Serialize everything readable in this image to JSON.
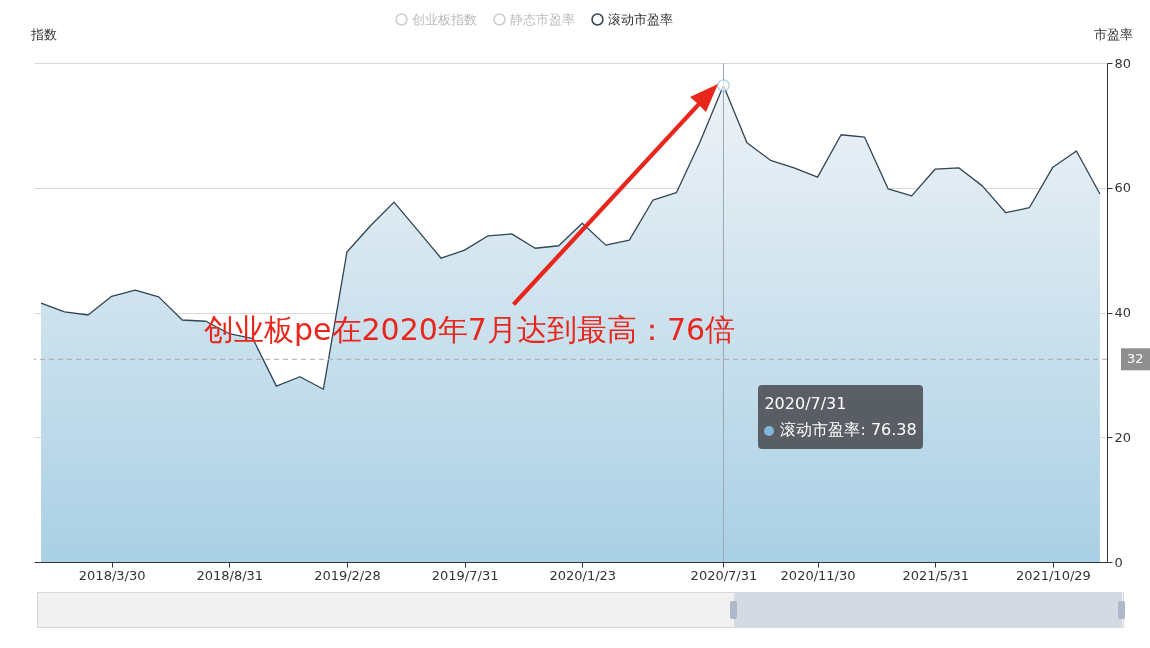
{
  "chart_data": {
    "type": "area",
    "ylabel": "指数",
    "y2label": "市盈率",
    "categories": [
      null,
      null,
      null,
      "2018/3/30",
      null,
      null,
      null,
      null,
      "2018/8/31",
      null,
      null,
      null,
      null,
      "2019/2/28",
      null,
      null,
      null,
      null,
      "2019/7/31",
      null,
      null,
      null,
      null,
      "2020/1/23",
      null,
      null,
      null,
      null,
      null,
      "2020/7/31",
      null,
      null,
      null,
      "2020/11/30",
      null,
      null,
      null,
      null,
      "2021/5/31",
      null,
      null,
      null,
      null,
      "2021/10/29",
      null,
      null
    ],
    "series": [
      {
        "name": "创业板指数",
        "type": "line",
        "color": "#cccccc",
        "values": [
          null,
          null,
          null,
          null,
          null,
          null,
          null,
          null,
          null,
          null,
          null,
          null,
          null,
          null,
          null,
          null,
          null,
          null,
          null,
          null,
          null,
          null,
          null,
          null,
          null,
          null,
          null,
          null,
          null,
          null,
          null,
          null,
          null,
          null,
          null,
          null,
          null,
          null,
          null,
          null,
          null,
          null,
          null,
          null,
          null,
          null
        ]
      },
      {
        "name": "静态市盈率",
        "type": "line",
        "color": "#cccccc",
        "values": [
          null,
          null,
          null,
          null,
          null,
          null,
          null,
          null,
          null,
          null,
          null,
          null,
          null,
          null,
          null,
          null,
          null,
          null,
          null,
          null,
          null,
          null,
          null,
          null,
          null,
          null,
          null,
          null,
          null,
          null,
          null,
          null,
          null,
          null,
          null,
          null,
          null,
          null,
          null,
          null,
          null,
          null,
          null,
          null,
          null,
          null
        ]
      },
      {
        "name": "滚动市盈率",
        "type": "area",
        "axis": "y2",
        "color": "#2f4554",
        "values": [
          41.5,
          40.1,
          39.6,
          42.6,
          43.6,
          42.5,
          38.8,
          38.6,
          36.6,
          35.8,
          28.2,
          29.7,
          27.7,
          49.7,
          53.9,
          57.7,
          53.2,
          48.7,
          50.0,
          52.3,
          52.6,
          50.3,
          50.7,
          54.3,
          50.8,
          51.6,
          58.0,
          59.2,
          67.3,
          76.38,
          67.2,
          64.4,
          63.2,
          61.7,
          68.5,
          68.1,
          59.8,
          58.7,
          63.0,
          63.2,
          60.3,
          56.0,
          56.8,
          63.3,
          65.9,
          59.0
        ]
      }
    ],
    "y2lim": [
      0,
      80
    ],
    "y2ticks": [
      0,
      20,
      40,
      60,
      80
    ],
    "grid": "y2",
    "legend": "top",
    "marker": "none",
    "ref_lines": [
      {
        "axis": "y2",
        "value": 32.5,
        "label": "32",
        "color": "#aaaaaa",
        "line_style": "dashed"
      }
    ],
    "annotations": [
      "滚动市盈率: 76.38",
      "创业板pe在2020年7月达到最高：76倍"
    ]
  }
}
